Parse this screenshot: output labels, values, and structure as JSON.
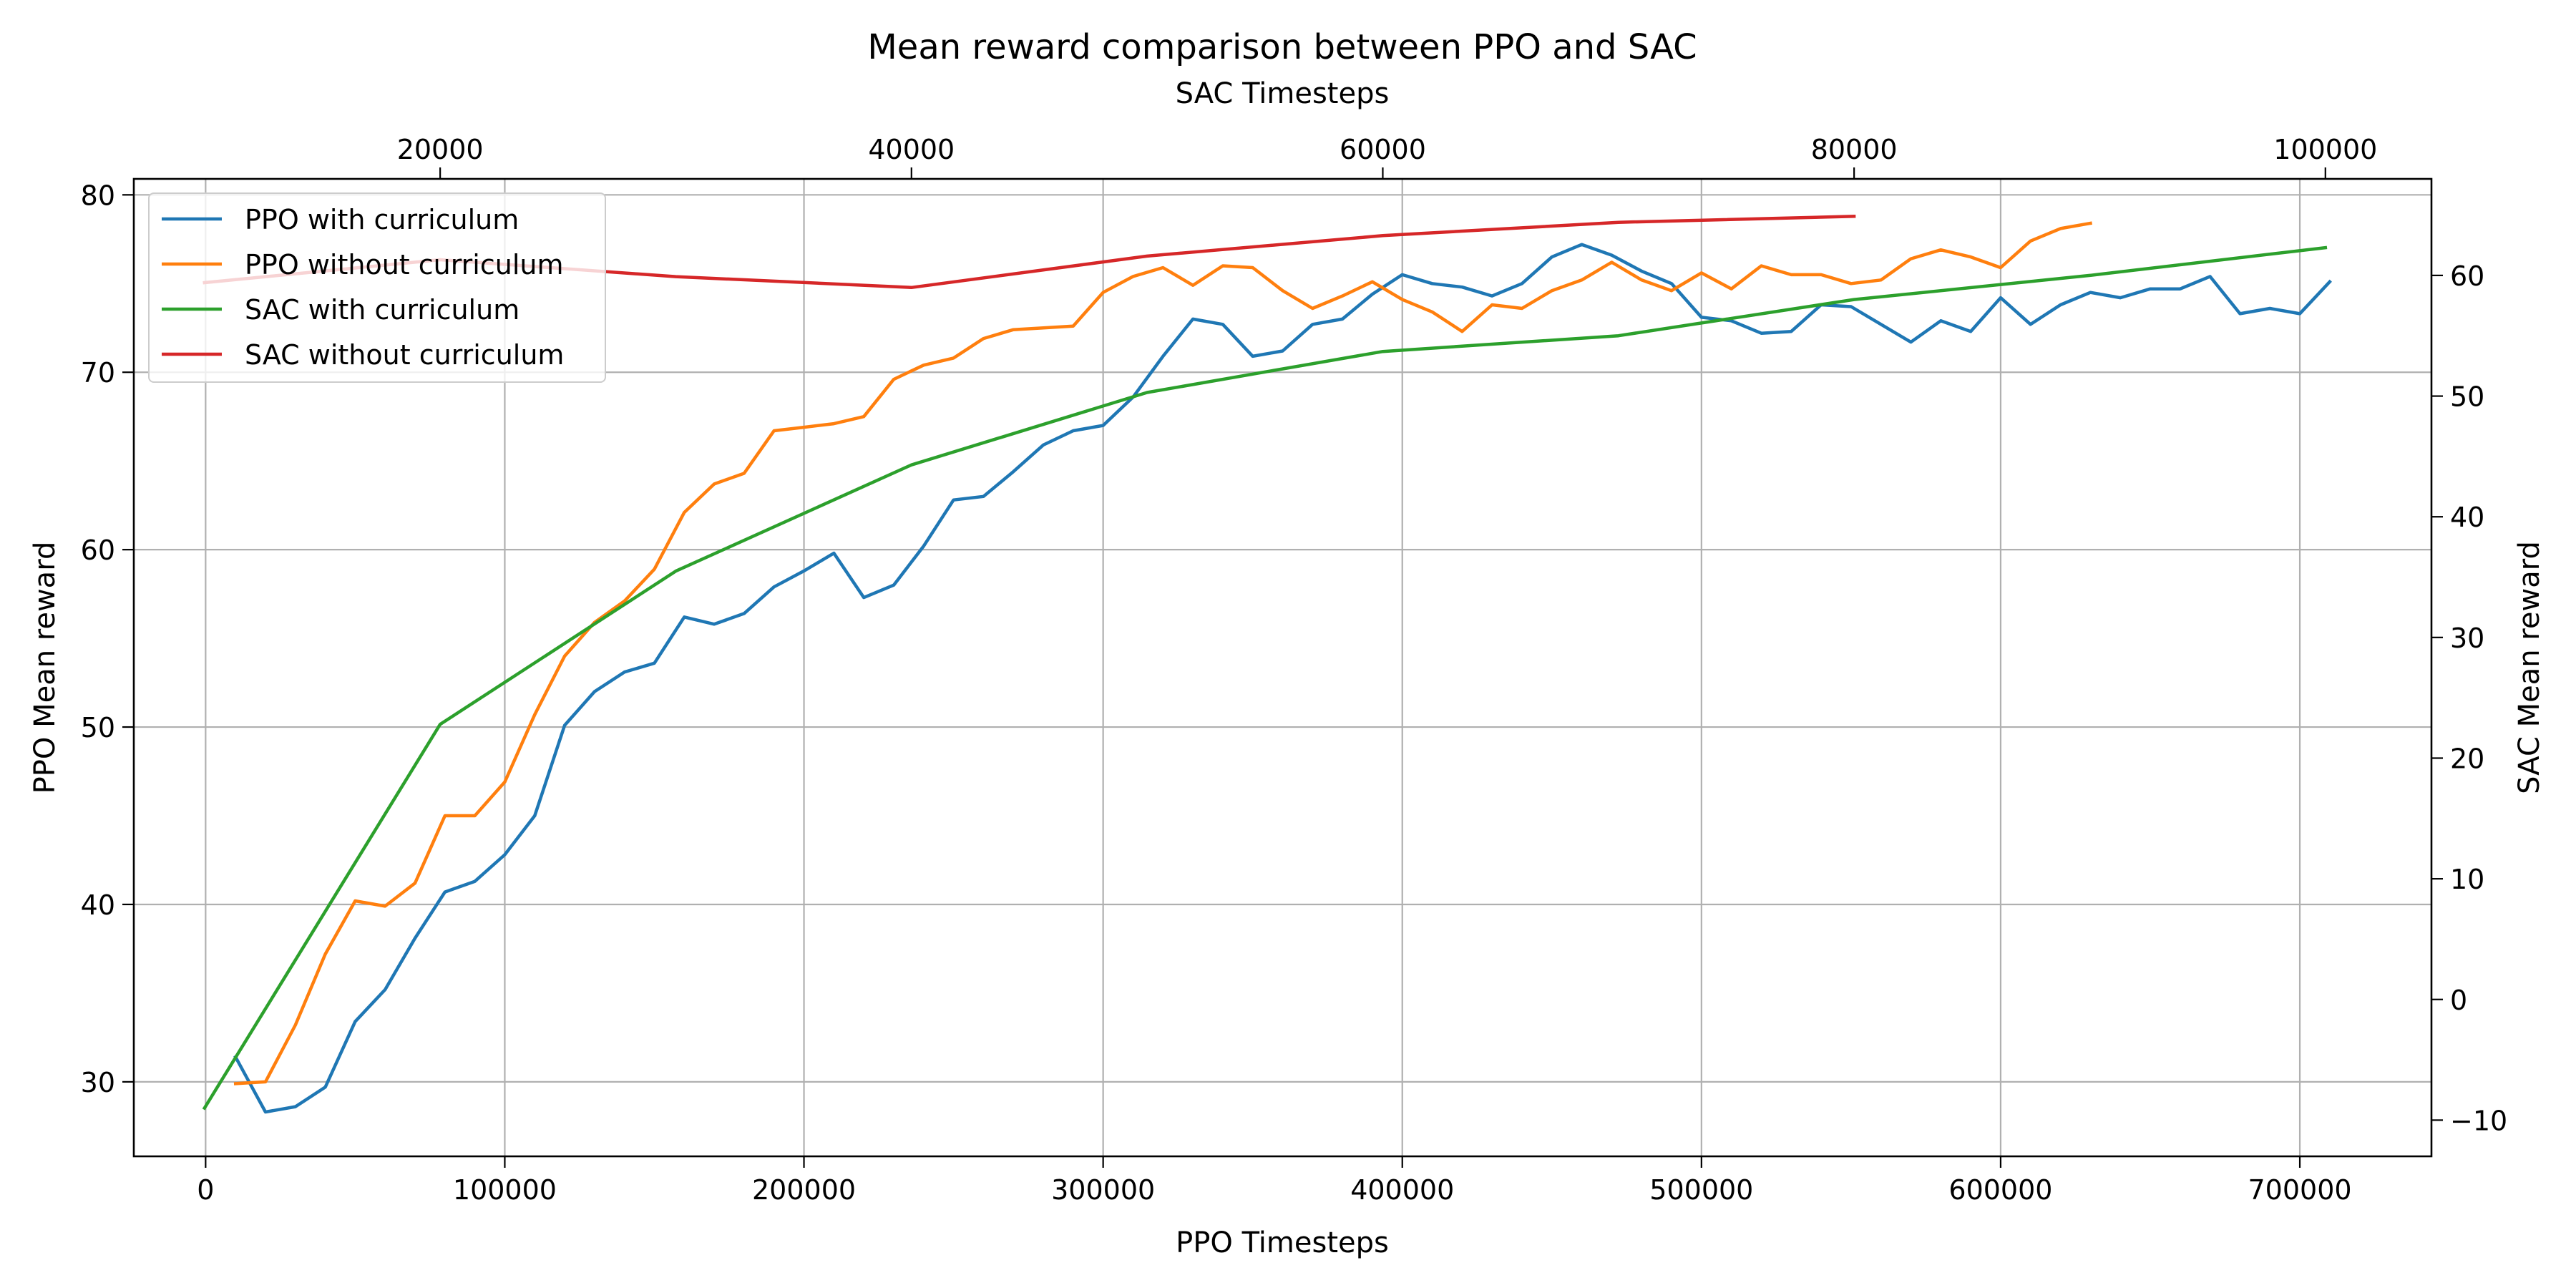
{
  "chart_data": {
    "type": "line",
    "title": "Mean reward comparison between PPO and SAC",
    "xlabel_bottom": "PPO Timesteps",
    "xlabel_top": "SAC Timesteps",
    "ylabel_left": "PPO Mean reward",
    "ylabel_right": "SAC Mean reward",
    "grid": true,
    "legend_position": "upper-left",
    "axes": {
      "x_bottom": {
        "lim": [
          -24000,
          744000
        ],
        "ticks": [
          0,
          100000,
          200000,
          300000,
          400000,
          500000,
          600000,
          700000
        ],
        "tick_labels": [
          "0",
          "100000",
          "200000",
          "300000",
          "400000",
          "500000",
          "600000",
          "700000"
        ]
      },
      "x_top": {
        "lim": [
          7000,
          104500
        ],
        "ticks": [
          20000,
          40000,
          60000,
          80000,
          100000
        ],
        "tick_labels": [
          "20000",
          "40000",
          "60000",
          "80000",
          "100000"
        ]
      },
      "y_left": {
        "lim": [
          25.8,
          80.9
        ],
        "ticks": [
          30,
          40,
          50,
          60,
          70,
          80
        ],
        "tick_labels": [
          "30",
          "40",
          "50",
          "60",
          "70",
          "80"
        ]
      },
      "y_right": {
        "lim": [
          -13,
          68
        ],
        "ticks": [
          -10,
          0,
          10,
          20,
          30,
          40,
          50,
          60
        ],
        "tick_labels": [
          "−10",
          "0",
          "10",
          "20",
          "30",
          "40",
          "50",
          "60"
        ]
      }
    },
    "series": [
      {
        "name": "PPO with curriculum",
        "color": "#1f77b4",
        "axis": "ppo",
        "x": [
          10000,
          20000,
          30000,
          40000,
          50000,
          60000,
          70000,
          80000,
          90000,
          100000,
          110000,
          120000,
          130000,
          140000,
          150000,
          160000,
          170000,
          180000,
          190000,
          200000,
          210000,
          220000,
          230000,
          240000,
          250000,
          260000,
          270000,
          280000,
          290000,
          300000,
          310000,
          320000,
          330000,
          340000,
          350000,
          360000,
          370000,
          380000,
          390000,
          400000,
          410000,
          420000,
          430000,
          440000,
          450000,
          460000,
          470000,
          480000,
          490000,
          500000,
          510000,
          520000,
          530000,
          540000,
          550000,
          560000,
          570000,
          580000,
          590000,
          600000,
          610000,
          620000,
          630000,
          640000,
          650000,
          660000,
          670000,
          680000,
          690000,
          700000,
          710000
        ],
        "y": [
          31.4,
          28.3,
          28.6,
          29.7,
          33.4,
          35.2,
          38.1,
          40.7,
          41.3,
          42.8,
          45.0,
          50.1,
          52.0,
          53.1,
          53.6,
          56.2,
          55.8,
          56.4,
          57.9,
          58.8,
          59.8,
          57.3,
          58.0,
          60.2,
          62.8,
          63.0,
          64.4,
          65.9,
          66.7,
          67.0,
          68.6,
          70.9,
          73.0,
          72.7,
          70.9,
          71.2,
          72.7,
          73.0,
          74.4,
          75.5,
          75.0,
          74.8,
          74.3,
          75.0,
          76.5,
          77.2,
          76.6,
          75.7,
          75.0,
          73.1,
          72.9,
          72.2,
          72.3,
          73.8,
          73.7,
          72.7,
          71.7,
          72.9,
          72.3,
          74.2,
          72.7,
          73.8,
          74.5,
          74.2,
          74.7,
          74.7,
          75.4,
          73.3,
          73.6,
          73.3,
          75.1
        ]
      },
      {
        "name": "PPO without curriculum",
        "color": "#ff7f0e",
        "axis": "ppo",
        "x": [
          10000,
          20000,
          30000,
          40000,
          50000,
          60000,
          70000,
          80000,
          90000,
          100000,
          110000,
          120000,
          130000,
          140000,
          150000,
          160000,
          170000,
          180000,
          190000,
          200000,
          210000,
          220000,
          230000,
          240000,
          250000,
          260000,
          270000,
          280000,
          290000,
          300000,
          310000,
          320000,
          330000,
          340000,
          350000,
          360000,
          370000,
          380000,
          390000,
          400000,
          410000,
          420000,
          430000,
          440000,
          450000,
          460000,
          470000,
          480000,
          490000,
          500000,
          510000,
          520000,
          530000,
          540000,
          550000,
          560000,
          570000,
          580000,
          590000,
          600000,
          610000,
          620000,
          630000
        ],
        "y": [
          29.9,
          30.0,
          33.2,
          37.2,
          40.2,
          39.9,
          41.2,
          45.0,
          45.0,
          46.9,
          50.7,
          54.0,
          55.9,
          57.1,
          58.9,
          62.1,
          63.7,
          64.3,
          66.7,
          66.9,
          67.1,
          67.5,
          69.6,
          70.4,
          70.8,
          71.9,
          72.4,
          72.5,
          72.6,
          74.5,
          75.4,
          75.9,
          74.9,
          76.0,
          75.9,
          74.6,
          73.6,
          74.3,
          75.1,
          74.1,
          73.4,
          72.3,
          73.8,
          73.6,
          74.6,
          75.2,
          76.2,
          75.2,
          74.6,
          75.6,
          74.7,
          76.0,
          75.5,
          75.5,
          75.0,
          75.2,
          76.4,
          76.9,
          76.5,
          75.9,
          77.4,
          78.1,
          78.4
        ]
      },
      {
        "name": "SAC with curriculum",
        "color": "#2ca02c",
        "axis": "sac",
        "x": [
          10000,
          20000,
          30000,
          40000,
          50000,
          60000,
          70000,
          80000,
          90000,
          100000
        ],
        "y": [
          -9.0,
          22.8,
          35.5,
          44.3,
          50.3,
          53.7,
          55.0,
          58.0,
          60.0,
          62.3
        ]
      },
      {
        "name": "SAC without curriculum",
        "color": "#d62728",
        "axis": "sac",
        "x": [
          10000,
          20000,
          30000,
          40000,
          50000,
          60000,
          70000,
          80000
        ],
        "y": [
          59.4,
          61.3,
          59.9,
          59.0,
          61.6,
          63.3,
          64.4,
          64.9
        ]
      }
    ]
  }
}
